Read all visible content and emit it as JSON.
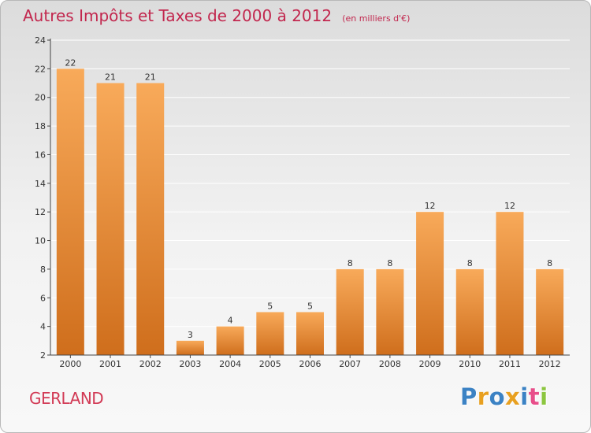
{
  "title": "Autres Impôts et Taxes de 2000 à 2012",
  "subtitle": "(en milliers d'€)",
  "commune": "GERLAND",
  "logo": {
    "text": "Proxiti",
    "letter_colors": [
      "#3b82c4",
      "#e8a020",
      "#3b82c4",
      "#e8a020",
      "#3b82c4",
      "#e84e8a",
      "#8cc63f"
    ]
  },
  "colors": {
    "bar_top": "#f8aa5a",
    "bar_bottom": "#cf6e1c",
    "axis": "#444444",
    "grid": "#ffffff",
    "label": "#333333"
  },
  "chart_data": {
    "type": "bar",
    "title": "Autres Impôts et Taxes de 2000 à 2012",
    "categories": [
      "2000",
      "2001",
      "2002",
      "2003",
      "2004",
      "2005",
      "2006",
      "2007",
      "2008",
      "2009",
      "2010",
      "2011",
      "2012"
    ],
    "values": [
      22,
      21,
      21,
      3,
      4,
      5,
      5,
      8,
      8,
      12,
      8,
      12,
      8
    ],
    "ylim": [
      2,
      24
    ],
    "yticks": [
      2,
      4,
      6,
      8,
      10,
      12,
      14,
      16,
      18,
      20,
      22,
      24
    ],
    "grid": true
  }
}
